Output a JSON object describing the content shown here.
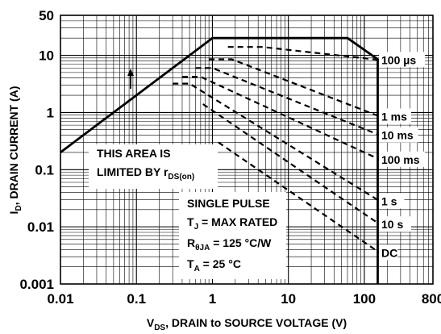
{
  "chart_data": {
    "type": "line",
    "x_scale": "log",
    "y_scale": "log",
    "xlim": [
      0.01,
      800
    ],
    "ylim": [
      0.001,
      50
    ],
    "grid": true,
    "x_ticks": [
      "0.01",
      "0.1",
      "1",
      "10",
      "100",
      "800"
    ],
    "y_ticks": [
      "0.001",
      "0.01",
      "0.1",
      "1",
      "10",
      "50"
    ],
    "xlabel": {
      "pre": "V",
      "sub": "DS",
      "post": ", DRAIN to SOURCE VOLTAGE (V)"
    },
    "ylabel": {
      "pre": "I",
      "sub": "D",
      "post": ", DRAIN CURRENT (A)"
    },
    "envelope": {
      "x": [
        0.01,
        1.0,
        60,
        150,
        150
      ],
      "y": [
        0.2,
        20,
        20,
        8.5,
        0.001
      ]
    },
    "series": [
      {
        "name": "100 µs",
        "x": [
          1.6,
          4.5,
          160
        ],
        "y": [
          14,
          14,
          8.3
        ]
      },
      {
        "name": "1 ms",
        "x": [
          0.9,
          1.8,
          160
        ],
        "y": [
          8.5,
          8.5,
          0.85
        ]
      },
      {
        "name": "10 ms",
        "x": [
          0.6,
          1.0,
          160
        ],
        "y": [
          6.0,
          6.0,
          0.4
        ]
      },
      {
        "name": "100 ms",
        "x": [
          0.4,
          0.7,
          160
        ],
        "y": [
          4.2,
          4.2,
          0.15
        ]
      },
      {
        "name": "1 s",
        "x": [
          0.3,
          0.5,
          160
        ],
        "y": [
          3.2,
          3.2,
          0.028
        ]
      },
      {
        "name": "10 s",
        "x": [
          0.75,
          160
        ],
        "y": [
          1.4,
          0.011
        ]
      },
      {
        "name": "DC",
        "x": [
          1.2,
          160
        ],
        "y": [
          0.3,
          0.0035
        ]
      }
    ],
    "annotations": {
      "area_note_line1": "THIS AREA IS",
      "area_note_line2_pre": "LIMITED BY r",
      "area_note_line2_sub": "DS(on)",
      "cond_line1": "SINGLE PULSE",
      "cond_line2_pre": "T",
      "cond_line2_sub": "J",
      "cond_line2_post": " = MAX RATED",
      "cond_line3_pre": "R",
      "cond_line3_sub": "θJA",
      "cond_line3_post": " = 125 °C/W",
      "cond_line4_pre": "T",
      "cond_line4_sub": "A",
      "cond_line4_post": " = 25 °C"
    }
  }
}
